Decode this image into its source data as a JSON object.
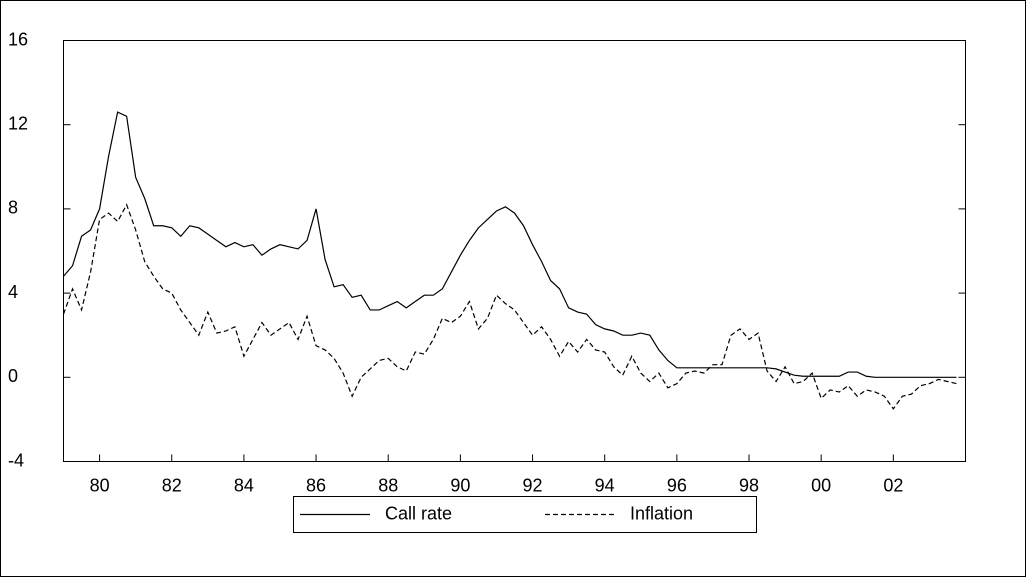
{
  "chart_data": {
    "type": "line",
    "x": [
      1979,
      1979.25,
      1979.5,
      1979.75,
      1980,
      1980.25,
      1980.5,
      1980.75,
      1981,
      1981.25,
      1981.5,
      1981.75,
      1982,
      1982.25,
      1982.5,
      1982.75,
      1983,
      1983.25,
      1983.5,
      1983.75,
      1984,
      1984.25,
      1984.5,
      1984.75,
      1985,
      1985.25,
      1985.5,
      1985.75,
      1986,
      1986.25,
      1986.5,
      1986.75,
      1987,
      1987.25,
      1987.5,
      1987.75,
      1988,
      1988.25,
      1988.5,
      1988.75,
      1989,
      1989.25,
      1989.5,
      1989.75,
      1990,
      1990.25,
      1990.5,
      1990.75,
      1991,
      1991.25,
      1991.5,
      1991.75,
      1992,
      1992.25,
      1992.5,
      1992.75,
      1993,
      1993.25,
      1993.5,
      1993.75,
      1994,
      1994.25,
      1994.5,
      1994.75,
      1995,
      1995.25,
      1995.5,
      1995.75,
      1996,
      1996.25,
      1996.5,
      1996.75,
      1997,
      1997.25,
      1997.5,
      1997.75,
      1998,
      1998.25,
      1998.5,
      1998.75,
      1999,
      1999.25,
      1999.5,
      1999.75,
      2000,
      2000.25,
      2000.5,
      2000.75,
      2001,
      2001.25,
      2001.5,
      2001.75,
      2002,
      2002.25,
      2002.5,
      2002.75,
      2003,
      2003.25,
      2003.5,
      2003.75
    ],
    "series": [
      {
        "name": "Call rate",
        "color": "#000000",
        "dash": "solid",
        "values": [
          4.8,
          5.3,
          6.7,
          7.0,
          8.0,
          10.5,
          12.6,
          12.4,
          9.5,
          8.5,
          7.2,
          7.2,
          7.1,
          6.7,
          7.2,
          7.1,
          6.8,
          6.5,
          6.2,
          6.4,
          6.2,
          6.3,
          5.8,
          6.1,
          6.3,
          6.2,
          6.1,
          6.5,
          8.0,
          5.6,
          4.3,
          4.4,
          3.8,
          3.9,
          3.2,
          3.2,
          3.4,
          3.6,
          3.3,
          3.6,
          3.9,
          3.9,
          4.2,
          5.0,
          5.8,
          6.5,
          7.1,
          7.5,
          7.9,
          8.1,
          7.8,
          7.2,
          6.3,
          5.5,
          4.6,
          4.2,
          3.3,
          3.1,
          3.0,
          2.5,
          2.3,
          2.2,
          2.0,
          2.0,
          2.1,
          2.0,
          1.3,
          0.8,
          0.45,
          0.45,
          0.45,
          0.45,
          0.45,
          0.45,
          0.45,
          0.45,
          0.45,
          0.45,
          0.45,
          0.4,
          0.25,
          0.1,
          0.05,
          0.05,
          0.05,
          0.05,
          0.05,
          0.25,
          0.25,
          0.05,
          0,
          0,
          0,
          0,
          0,
          0,
          0,
          0,
          0,
          0
        ]
      },
      {
        "name": "Inflation",
        "color": "#000000",
        "dash": "dashed",
        "values": [
          3.0,
          4.2,
          3.2,
          5.0,
          7.5,
          7.8,
          7.4,
          8.2,
          7.0,
          5.5,
          4.8,
          4.2,
          4.0,
          3.2,
          2.6,
          2.0,
          3.1,
          2.1,
          2.2,
          2.4,
          1.0,
          1.8,
          2.6,
          2.0,
          2.3,
          2.6,
          1.8,
          2.9,
          1.5,
          1.3,
          0.9,
          0.2,
          -0.9,
          0.0,
          0.4,
          0.8,
          0.9,
          0.5,
          0.3,
          1.2,
          1.1,
          1.8,
          2.8,
          2.6,
          2.9,
          3.6,
          2.3,
          2.8,
          3.9,
          3.5,
          3.2,
          2.6,
          2.0,
          2.4,
          1.8,
          1.0,
          1.7,
          1.2,
          1.8,
          1.3,
          1.2,
          0.5,
          0.1,
          1.0,
          0.2,
          -0.2,
          0.2,
          -0.5,
          -0.3,
          0.2,
          0.3,
          0.2,
          0.6,
          0.6,
          2.0,
          2.3,
          1.8,
          2.1,
          0.3,
          -0.2,
          0.5,
          -0.3,
          -0.2,
          0.2,
          -1.0,
          -0.6,
          -0.7,
          -0.4,
          -0.9,
          -0.6,
          -0.7,
          -0.9,
          -1.5,
          -0.9,
          -0.8,
          -0.4,
          -0.3,
          -0.1,
          -0.2,
          -0.3
        ]
      }
    ],
    "xlim": [
      1979,
      2004
    ],
    "xticks": [
      {
        "value": 1980,
        "label": "80"
      },
      {
        "value": 1982,
        "label": "82"
      },
      {
        "value": 1984,
        "label": "84"
      },
      {
        "value": 1986,
        "label": "86"
      },
      {
        "value": 1988,
        "label": "88"
      },
      {
        "value": 1990,
        "label": "90"
      },
      {
        "value": 1992,
        "label": "92"
      },
      {
        "value": 1994,
        "label": "94"
      },
      {
        "value": 1996,
        "label": "96"
      },
      {
        "value": 1998,
        "label": "98"
      },
      {
        "value": 2000,
        "label": "00"
      },
      {
        "value": 2002,
        "label": "02"
      }
    ],
    "ylim": [
      -4,
      16
    ],
    "yticks": [
      -4,
      0,
      4,
      8,
      12,
      16
    ],
    "grid": false,
    "legend": "bottom"
  }
}
